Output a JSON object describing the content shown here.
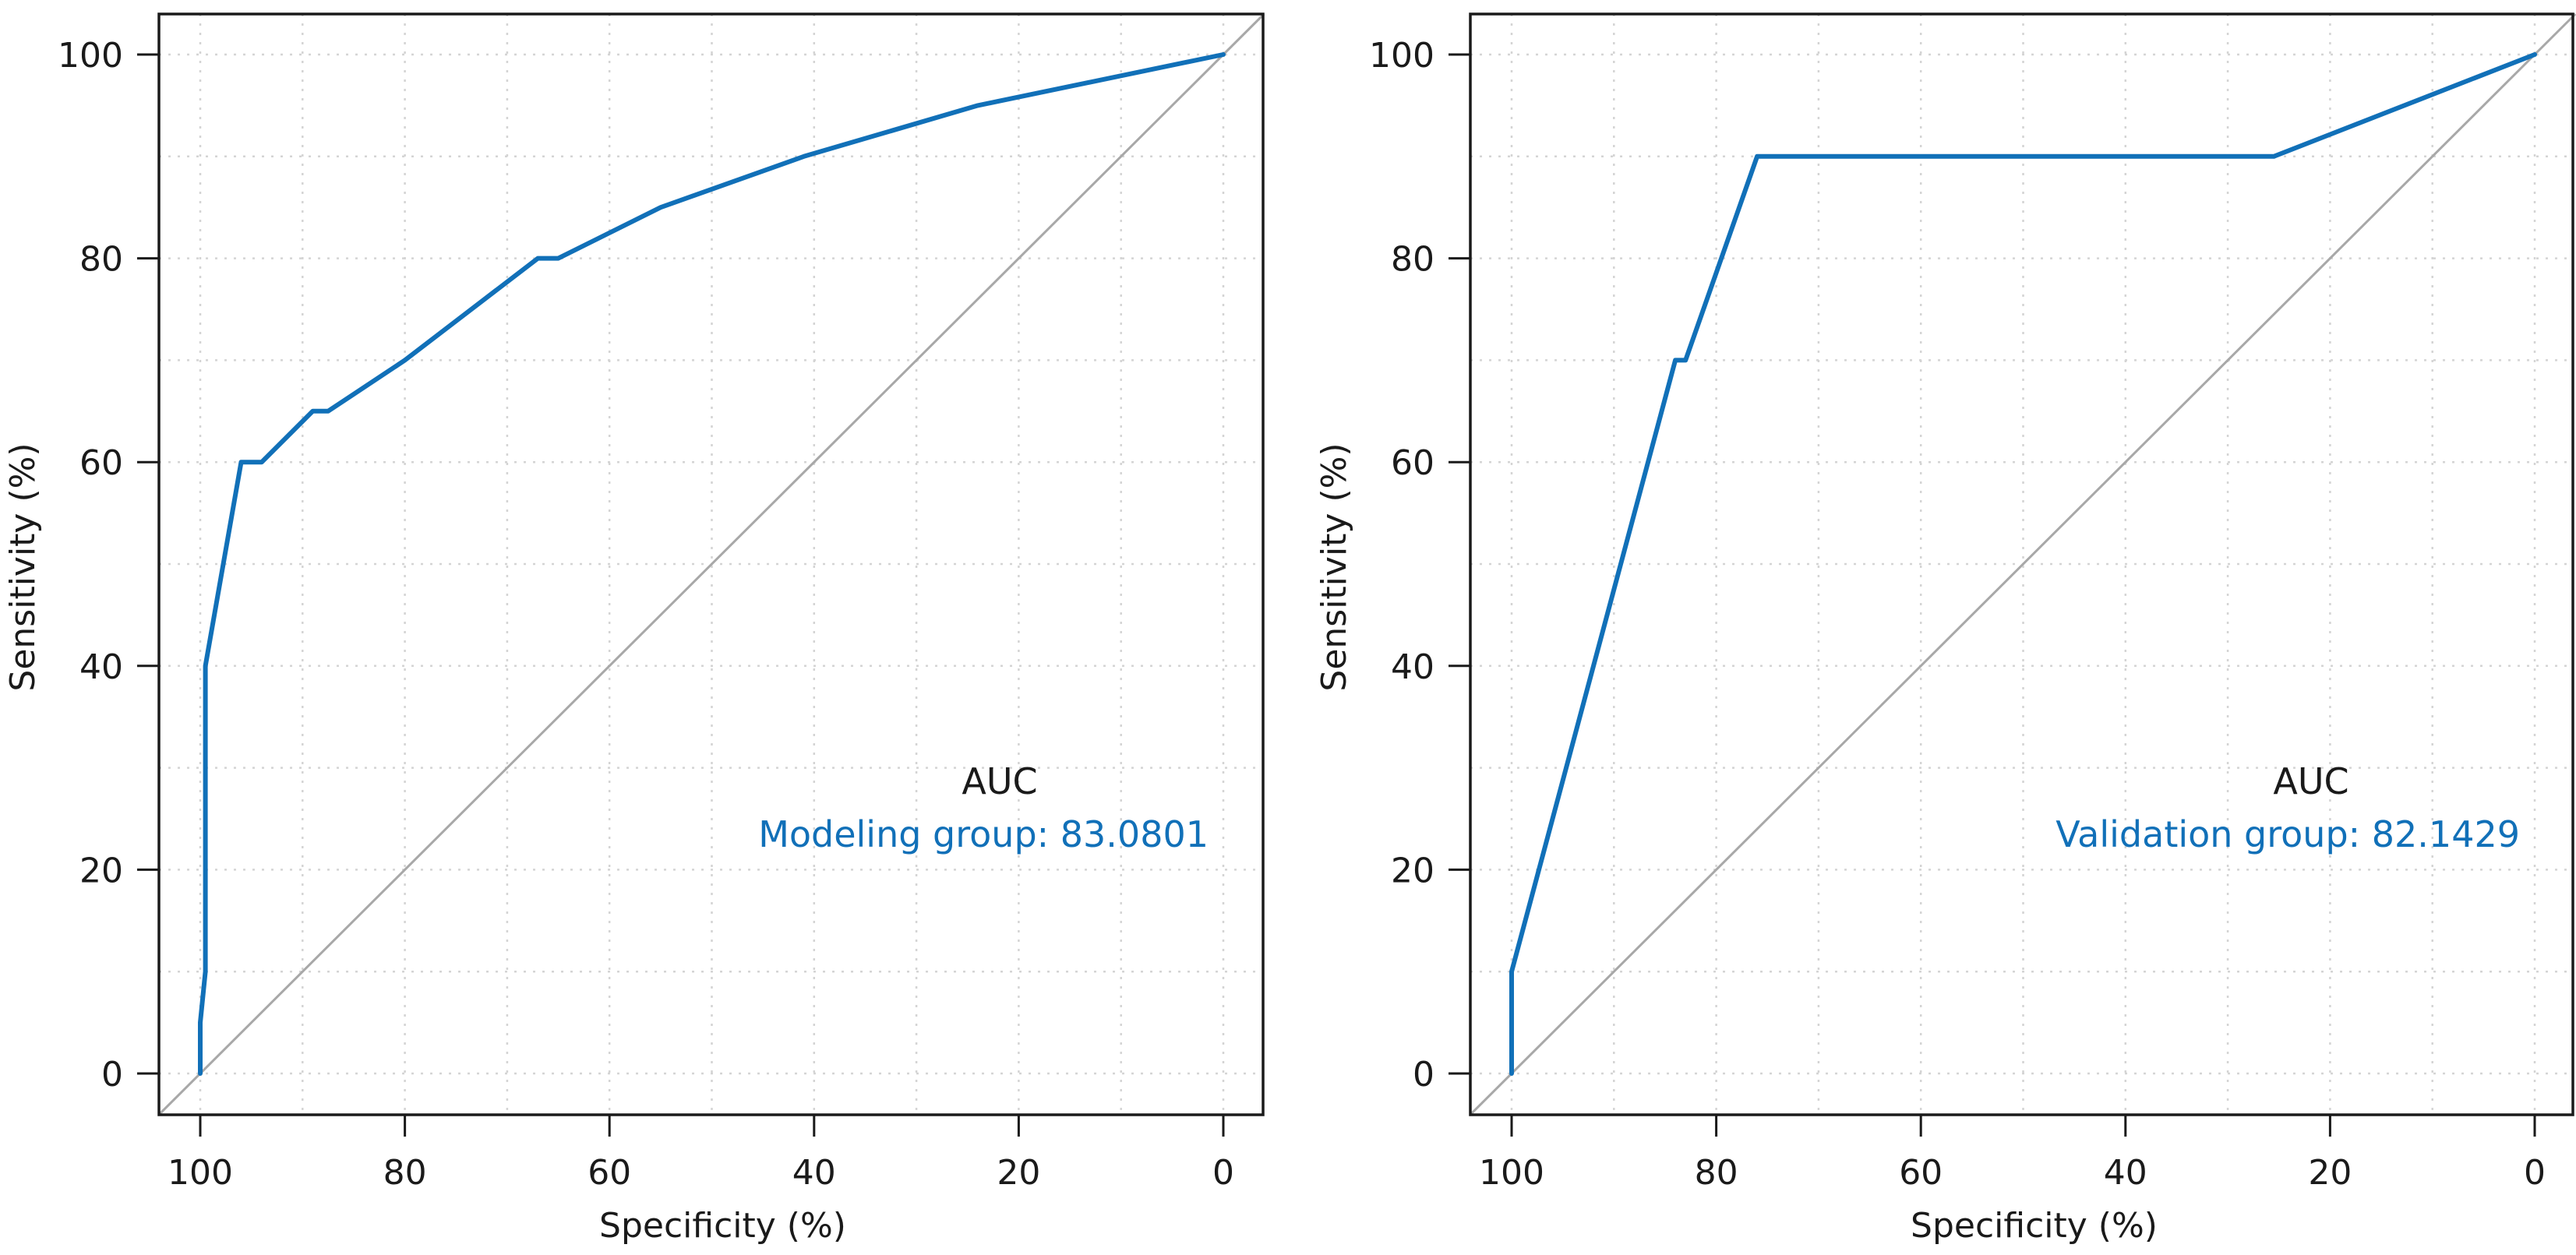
{
  "colors": {
    "roc": "#1170b8",
    "reference": "#a8a8a8",
    "axis": "#1a1a1a",
    "grid": "#d4d4d4"
  },
  "chart_data": [
    {
      "type": "line",
      "title": "",
      "xlabel": "Specificity (%)",
      "ylabel": "Sensitivity (%)",
      "x_reversed": true,
      "xlim": [
        100,
        0
      ],
      "ylim": [
        0,
        100
      ],
      "xticks": [
        "100",
        "80",
        "60",
        "40",
        "20",
        "0"
      ],
      "yticks": [
        "0",
        "20",
        "40",
        "60",
        "80",
        "100"
      ],
      "grid": true,
      "reference_line": true,
      "annotation_title": "AUC",
      "annotation_label": "Modeling group: 83.0801",
      "series": [
        {
          "x": [
            100,
            100,
            99.5,
            99.5,
            96,
            94,
            89,
            87.5,
            80,
            67,
            65,
            55,
            41,
            24,
            0
          ],
          "y": [
            0,
            5,
            10,
            40,
            60,
            60,
            65,
            65,
            70,
            80,
            80,
            85,
            90,
            95,
            100
          ]
        }
      ]
    },
    {
      "type": "line",
      "title": "",
      "xlabel": "Specificity (%)",
      "ylabel": "Sensitivity (%)",
      "x_reversed": true,
      "xlim": [
        100,
        0
      ],
      "ylim": [
        0,
        100
      ],
      "xticks": [
        "100",
        "80",
        "60",
        "40",
        "20",
        "0"
      ],
      "yticks": [
        "0",
        "20",
        "40",
        "60",
        "80",
        "100"
      ],
      "grid": true,
      "reference_line": true,
      "annotation_title": "AUC",
      "annotation_label": "Validation group: 82.1429",
      "series": [
        {
          "x": [
            100,
            100,
            84,
            83,
            76,
            25.5,
            0
          ],
          "y": [
            0,
            10,
            70,
            70,
            90,
            90,
            100
          ]
        }
      ]
    }
  ]
}
